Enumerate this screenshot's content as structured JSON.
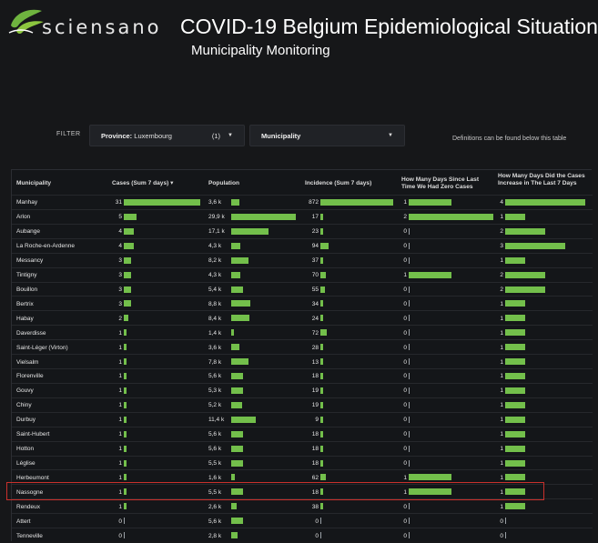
{
  "header": {
    "logo_text": "sciensano",
    "title": "COVID-19 Belgium Epidemiological Situation",
    "subtitle": "Municipality Monitoring"
  },
  "filter": {
    "label": "FILTER",
    "province_key": "Province:",
    "province_value": "Luxembourg",
    "province_count": "(1)",
    "municipality_label": "Municipality",
    "definitions_note": "Definitions can be found below this table"
  },
  "table": {
    "columns": [
      "Municipality",
      "Cases (Sum 7 days)",
      "Population",
      "Incidence (Sum 7 days)",
      "How Many Days Since Last Time We Had Zero Cases",
      "How Many Days Did the Cases Increase in The Last 7 Days"
    ],
    "sort_indicator": "▾",
    "maxima": {
      "cases": 31,
      "population": 29.9,
      "incidence": 872,
      "days_zero": 2,
      "days_increase": 4
    },
    "rows": [
      {
        "name": "Manhay",
        "cases": "31",
        "cases_v": 31,
        "pop": "3,6 k",
        "pop_v": 3.6,
        "inc": "872",
        "inc_v": 872,
        "dz": "1",
        "dz_v": 1,
        "di": "4",
        "di_v": 4
      },
      {
        "name": "Arlon",
        "cases": "5",
        "cases_v": 5,
        "pop": "29,9 k",
        "pop_v": 29.9,
        "inc": "17",
        "inc_v": 17,
        "dz": "2",
        "dz_v": 2,
        "di": "1",
        "di_v": 1
      },
      {
        "name": "Aubange",
        "cases": "4",
        "cases_v": 4,
        "pop": "17,1 k",
        "pop_v": 17.1,
        "inc": "23",
        "inc_v": 23,
        "dz": "0",
        "dz_v": 0,
        "di": "2",
        "di_v": 2
      },
      {
        "name": "La Roche-en-Ardenne",
        "cases": "4",
        "cases_v": 4,
        "pop": "4,3 k",
        "pop_v": 4.3,
        "inc": "94",
        "inc_v": 94,
        "dz": "0",
        "dz_v": 0,
        "di": "3",
        "di_v": 3
      },
      {
        "name": "Messancy",
        "cases": "3",
        "cases_v": 3,
        "pop": "8,2 k",
        "pop_v": 8.2,
        "inc": "37",
        "inc_v": 37,
        "dz": "0",
        "dz_v": 0,
        "di": "1",
        "di_v": 1
      },
      {
        "name": "Tintigny",
        "cases": "3",
        "cases_v": 3,
        "pop": "4,3 k",
        "pop_v": 4.3,
        "inc": "70",
        "inc_v": 70,
        "dz": "1",
        "dz_v": 1,
        "di": "2",
        "di_v": 2
      },
      {
        "name": "Bouillon",
        "cases": "3",
        "cases_v": 3,
        "pop": "5,4 k",
        "pop_v": 5.4,
        "inc": "55",
        "inc_v": 55,
        "dz": "0",
        "dz_v": 0,
        "di": "2",
        "di_v": 2
      },
      {
        "name": "Bertrix",
        "cases": "3",
        "cases_v": 3,
        "pop": "8,8 k",
        "pop_v": 8.8,
        "inc": "34",
        "inc_v": 34,
        "dz": "0",
        "dz_v": 0,
        "di": "1",
        "di_v": 1
      },
      {
        "name": "Habay",
        "cases": "2",
        "cases_v": 2,
        "pop": "8,4 k",
        "pop_v": 8.4,
        "inc": "24",
        "inc_v": 24,
        "dz": "0",
        "dz_v": 0,
        "di": "1",
        "di_v": 1
      },
      {
        "name": "Daverdisse",
        "cases": "1",
        "cases_v": 1,
        "pop": "1,4 k",
        "pop_v": 1.4,
        "inc": "72",
        "inc_v": 72,
        "dz": "0",
        "dz_v": 0,
        "di": "1",
        "di_v": 1
      },
      {
        "name": "Saint-Léger (Virton)",
        "cases": "1",
        "cases_v": 1,
        "pop": "3,6 k",
        "pop_v": 3.6,
        "inc": "28",
        "inc_v": 28,
        "dz": "0",
        "dz_v": 0,
        "di": "1",
        "di_v": 1
      },
      {
        "name": "Vielsalm",
        "cases": "1",
        "cases_v": 1,
        "pop": "7,8 k",
        "pop_v": 7.8,
        "inc": "13",
        "inc_v": 13,
        "dz": "0",
        "dz_v": 0,
        "di": "1",
        "di_v": 1
      },
      {
        "name": "Florenville",
        "cases": "1",
        "cases_v": 1,
        "pop": "5,6 k",
        "pop_v": 5.6,
        "inc": "18",
        "inc_v": 18,
        "dz": "0",
        "dz_v": 0,
        "di": "1",
        "di_v": 1
      },
      {
        "name": "Gouvy",
        "cases": "1",
        "cases_v": 1,
        "pop": "5,3 k",
        "pop_v": 5.3,
        "inc": "19",
        "inc_v": 19,
        "dz": "0",
        "dz_v": 0,
        "di": "1",
        "di_v": 1
      },
      {
        "name": "Chiny",
        "cases": "1",
        "cases_v": 1,
        "pop": "5,2 k",
        "pop_v": 5.2,
        "inc": "19",
        "inc_v": 19,
        "dz": "0",
        "dz_v": 0,
        "di": "1",
        "di_v": 1
      },
      {
        "name": "Durbuy",
        "cases": "1",
        "cases_v": 1,
        "pop": "11,4 k",
        "pop_v": 11.4,
        "inc": "9",
        "inc_v": 9,
        "dz": "0",
        "dz_v": 0,
        "di": "1",
        "di_v": 1
      },
      {
        "name": "Saint-Hubert",
        "cases": "1",
        "cases_v": 1,
        "pop": "5,6 k",
        "pop_v": 5.6,
        "inc": "18",
        "inc_v": 18,
        "dz": "0",
        "dz_v": 0,
        "di": "1",
        "di_v": 1
      },
      {
        "name": "Hotton",
        "cases": "1",
        "cases_v": 1,
        "pop": "5,6 k",
        "pop_v": 5.6,
        "inc": "18",
        "inc_v": 18,
        "dz": "0",
        "dz_v": 0,
        "di": "1",
        "di_v": 1
      },
      {
        "name": "Léglise",
        "cases": "1",
        "cases_v": 1,
        "pop": "5,5 k",
        "pop_v": 5.5,
        "inc": "18",
        "inc_v": 18,
        "dz": "0",
        "dz_v": 0,
        "di": "1",
        "di_v": 1
      },
      {
        "name": "Herbeumont",
        "cases": "1",
        "cases_v": 1,
        "pop": "1,6 k",
        "pop_v": 1.6,
        "inc": "62",
        "inc_v": 62,
        "dz": "1",
        "dz_v": 1,
        "di": "1",
        "di_v": 1
      },
      {
        "name": "Nassogne",
        "cases": "1",
        "cases_v": 1,
        "pop": "5,5 k",
        "pop_v": 5.5,
        "inc": "18",
        "inc_v": 18,
        "dz": "1",
        "dz_v": 1,
        "di": "1",
        "di_v": 1
      },
      {
        "name": "Rendeux",
        "cases": "1",
        "cases_v": 1,
        "pop": "2,6 k",
        "pop_v": 2.6,
        "inc": "38",
        "inc_v": 38,
        "dz": "0",
        "dz_v": 0,
        "di": "1",
        "di_v": 1
      },
      {
        "name": "Attert",
        "cases": "0",
        "cases_v": 0,
        "pop": "5,6 k",
        "pop_v": 5.6,
        "inc": "0",
        "inc_v": 0,
        "dz": "0",
        "dz_v": 0,
        "di": "0",
        "di_v": 0
      },
      {
        "name": "Tenneville",
        "cases": "0",
        "cases_v": 0,
        "pop": "2,8 k",
        "pop_v": 2.8,
        "inc": "0",
        "inc_v": 0,
        "dz": "0",
        "dz_v": 0,
        "di": "0",
        "di_v": 0
      }
    ],
    "highlighted_row": "Nassogne"
  },
  "colors": {
    "bar": "#73bf4b",
    "highlight": "#c9302c",
    "background": "#161719"
  }
}
